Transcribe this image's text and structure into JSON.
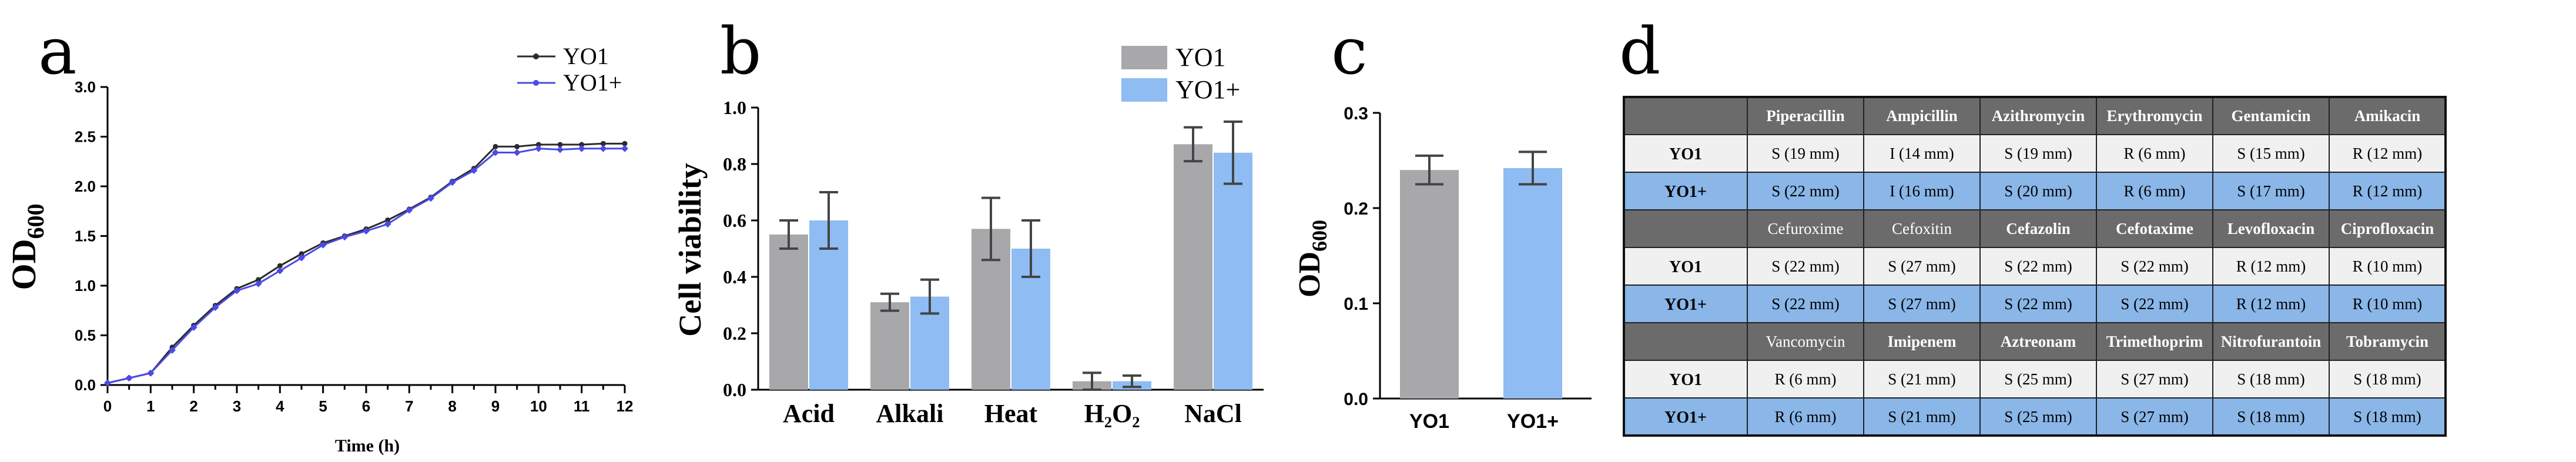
{
  "panels": {
    "a": "a",
    "b": "b",
    "c": "c",
    "d": "d"
  },
  "colors": {
    "yo1": "#2b2b2b",
    "yo1plus": "#4b4be6",
    "bar_yo1": "#a8a8aa",
    "bar_yo1plus": "#8ebcf3",
    "header": "#6b6b6b",
    "row_yo1": "#f0f0f0",
    "row_yo1plus": "#8ab6e8"
  },
  "chart_data": [
    {
      "id": "a",
      "type": "line",
      "title": "",
      "xlabel": "Time (h)",
      "ylabel": "OD",
      "ylabel_sub": "600",
      "xlim": [
        0,
        12
      ],
      "ylim": [
        0,
        3.0
      ],
      "xticks": [
        "0",
        "0.5",
        "1",
        "1.5",
        "2",
        "2.5",
        "3",
        "3.5",
        "4",
        "4.5",
        "5",
        "5.5",
        "6",
        "6.5",
        "7",
        "7.5",
        "8",
        "8.5",
        "9",
        "9.5",
        "10",
        "10.5",
        "11",
        "11.5",
        "12"
      ],
      "yticks": [
        "0.0",
        "0.5",
        "1.0",
        "1.5",
        "2.0",
        "2.5",
        "3.0"
      ],
      "x": [
        0,
        0.5,
        1,
        1.5,
        2,
        2.5,
        3,
        3.5,
        4,
        4.5,
        5,
        5.5,
        6,
        6.5,
        7,
        7.5,
        8,
        8.5,
        9,
        9.5,
        10,
        10.5,
        11,
        11.5,
        12
      ],
      "series": [
        {
          "name": "YO1",
          "values": [
            0.02,
            0.07,
            0.12,
            0.38,
            0.6,
            0.8,
            0.97,
            1.06,
            1.2,
            1.32,
            1.43,
            1.5,
            1.57,
            1.66,
            1.77,
            1.89,
            2.05,
            2.18,
            2.4,
            2.4,
            2.42,
            2.42,
            2.42,
            2.43,
            2.43
          ]
        },
        {
          "name": "YO1+",
          "values": [
            0.02,
            0.07,
            0.12,
            0.35,
            0.58,
            0.78,
            0.95,
            1.02,
            1.15,
            1.28,
            1.41,
            1.49,
            1.55,
            1.62,
            1.76,
            1.88,
            2.04,
            2.16,
            2.34,
            2.34,
            2.38,
            2.37,
            2.38,
            2.38,
            2.38
          ]
        }
      ]
    },
    {
      "id": "b",
      "type": "bar",
      "title": "",
      "xlabel": "",
      "ylabel": "Cell viability",
      "ylim": [
        0,
        1.0
      ],
      "yticks": [
        "0.0",
        "0.2",
        "0.4",
        "0.6",
        "0.8",
        "1.0"
      ],
      "categories": [
        "Acid",
        "Alkali",
        "Heat",
        "H₂O₂",
        "NaCl"
      ],
      "series": [
        {
          "name": "YO1",
          "values": [
            0.55,
            0.31,
            0.57,
            0.03,
            0.87
          ],
          "errors": [
            0.05,
            0.03,
            0.11,
            0.03,
            0.06
          ]
        },
        {
          "name": "YO1+",
          "values": [
            0.6,
            0.33,
            0.5,
            0.03,
            0.84
          ],
          "errors": [
            0.1,
            0.06,
            0.1,
            0.02,
            0.11
          ]
        }
      ]
    },
    {
      "id": "c",
      "type": "bar",
      "title": "",
      "xlabel": "",
      "ylabel": "OD",
      "ylabel_sub": "600",
      "ylim": [
        0,
        0.3
      ],
      "yticks": [
        "0.0",
        "0.1",
        "0.2",
        "0.3"
      ],
      "categories": [
        "YO1",
        "YO1+"
      ],
      "values": [
        0.24,
        0.242
      ],
      "errors": [
        0.015,
        0.017
      ]
    },
    {
      "id": "d",
      "type": "table",
      "blocks": [
        {
          "headers": [
            "Piperacillin",
            "Ampicillin",
            "Azithromycin",
            "Erythromycin",
            "Gentamicin",
            "Amikacin"
          ],
          "header_bold": [
            true,
            true,
            true,
            true,
            true,
            true
          ],
          "rows": [
            {
              "label": "YO1",
              "cells": [
                "S (19 mm)",
                "I (14 mm)",
                "S (19 mm)",
                "R (6 mm)",
                "S (15 mm)",
                "R (12 mm)"
              ]
            },
            {
              "label": "YO1+",
              "cells": [
                "S (22 mm)",
                "I (16 mm)",
                "S (20 mm)",
                "R (6 mm)",
                "S (17 mm)",
                "R (12 mm)"
              ]
            }
          ]
        },
        {
          "headers": [
            "Cefuroxime",
            "Cefoxitin",
            "Cefazolin",
            "Cefotaxime",
            "Levofloxacin",
            "Ciprofloxacin"
          ],
          "header_bold": [
            false,
            false,
            true,
            true,
            true,
            true
          ],
          "rows": [
            {
              "label": "YO1",
              "cells": [
                "S (22 mm)",
                "S (27 mm)",
                "S (22 mm)",
                "S (22 mm)",
                "R (12 mm)",
                "R (10 mm)"
              ]
            },
            {
              "label": "YO1+",
              "cells": [
                "S (22 mm)",
                "S (27 mm)",
                "S (22 mm)",
                "S (22 mm)",
                "R (12 mm)",
                "R (10 mm)"
              ]
            }
          ]
        },
        {
          "headers": [
            "Vancomycin",
            "Imipenem",
            "Aztreonam",
            "Trimethoprim",
            "Nitrofurantoin",
            "Tobramycin"
          ],
          "header_bold": [
            false,
            true,
            true,
            true,
            true,
            true
          ],
          "rows": [
            {
              "label": "YO1",
              "cells": [
                "R (6 mm)",
                "S (21 mm)",
                "S (25 mm)",
                "S (27 mm)",
                "S (18 mm)",
                "S (18 mm)"
              ]
            },
            {
              "label": "YO1+",
              "cells": [
                "R (6 mm)",
                "S (21 mm)",
                "S (25 mm)",
                "S (27 mm)",
                "S (18 mm)",
                "S (18 mm)"
              ]
            }
          ]
        }
      ]
    }
  ]
}
